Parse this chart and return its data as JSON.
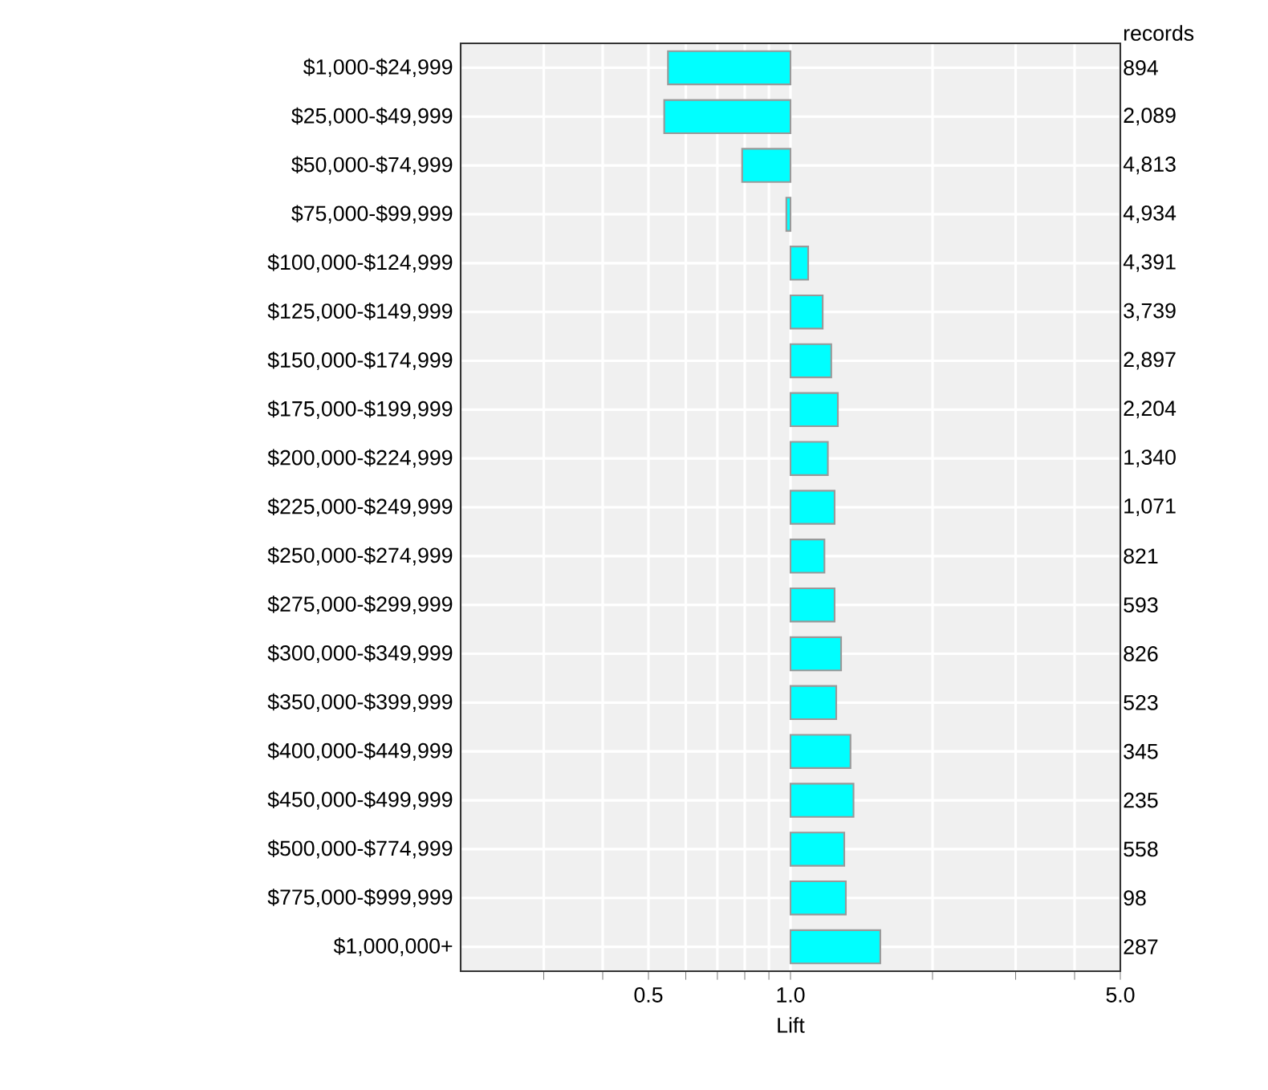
{
  "chart_data": {
    "type": "bar",
    "orientation": "horizontal",
    "log": "x",
    "xlabel": "Lift",
    "categories": [
      "$1,000-$24,999",
      "$25,000-$49,999",
      "$50,000-$74,999",
      "$75,000-$99,999",
      "$100,000-$124,999",
      "$125,000-$149,999",
      "$150,000-$174,999",
      "$175,000-$199,999",
      "$200,000-$224,999",
      "$225,000-$249,999",
      "$250,000-$274,999",
      "$275,000-$299,999",
      "$300,000-$349,999",
      "$350,000-$399,999",
      "$400,000-$449,999",
      "$450,000-$499,999",
      "$500,000-$774,999",
      "$775,000-$999,999",
      "$1,000,000+"
    ],
    "values": [
      -0.45,
      -0.46,
      -0.21,
      -0.02,
      0.09,
      0.17,
      0.22,
      0.26,
      0.2,
      0.24,
      0.18,
      0.24,
      0.28,
      0.25,
      0.34,
      0.36,
      0.3,
      0.31,
      0.55
    ],
    "base": [
      1,
      1,
      1,
      1,
      1,
      1,
      1,
      1,
      1,
      1,
      1,
      1,
      1,
      1,
      1,
      1,
      1,
      1,
      1
    ],
    "color": "#00ffff",
    "xlim": [
      0.2,
      5
    ],
    "xticks": [
      {
        "value": 0.3,
        "label": null
      },
      {
        "value": 0.4,
        "label": null
      },
      0.5,
      {
        "value": 0.6,
        "label": null
      },
      {
        "value": 0.7,
        "label": null
      },
      {
        "value": 0.8,
        "label": null
      },
      {
        "value": 0.9,
        "label": null
      },
      {
        "value": 1,
        "label": "1.0"
      },
      {
        "value": 2,
        "label": null
      },
      {
        "value": 3,
        "label": null
      },
      {
        "value": 4,
        "label": null
      },
      {
        "value": 5,
        "label": "5.0"
      }
    ],
    "grid": true,
    "annotations": [
      "records",
      "894",
      "2,089",
      "4,813",
      "4,934",
      "4,391",
      "3,739",
      "2,897",
      "2,204",
      "1,340",
      "1,071",
      "821",
      "593",
      "826",
      "523",
      "345",
      "235",
      "558",
      "98",
      "287"
    ]
  }
}
